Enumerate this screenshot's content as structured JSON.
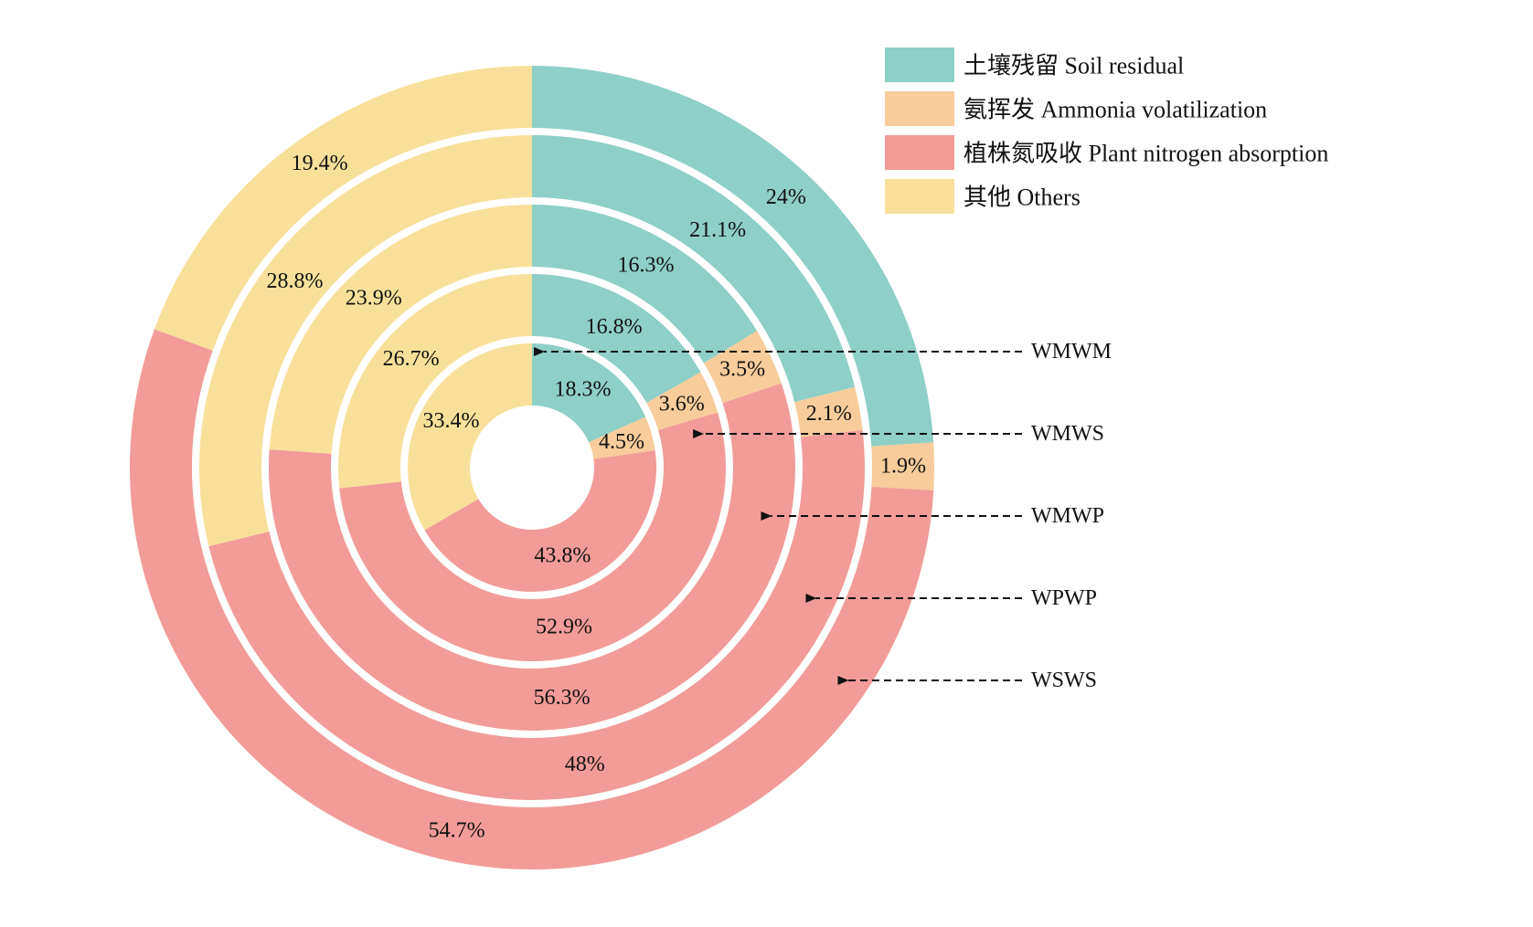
{
  "chart_data": {
    "type": "donut",
    "legend": {
      "placement": "top-right",
      "entries": [
        {
          "key": "soil",
          "label": "土壤残留 Soil residual",
          "color": "#8ECFC7"
        },
        {
          "key": "ammonia",
          "label": "氨挥发 Ammonia volatilization",
          "color": "#F8CC9B"
        },
        {
          "key": "plant",
          "label": "植株氮吸收 Plant nitrogen absorption",
          "color": "#F19C98"
        },
        {
          "key": "others",
          "label": "其他 Others",
          "color": "#F8E09A"
        }
      ]
    },
    "rings": [
      {
        "name": "WMWM",
        "values": [
          {
            "category": "soil",
            "value": 18.3,
            "label": "18.3%"
          },
          {
            "category": "ammonia",
            "value": 4.5,
            "label": "4.5%"
          },
          {
            "category": "plant",
            "value": 43.8,
            "label": "43.8%"
          },
          {
            "category": "others",
            "value": 33.4,
            "label": "33.4%"
          }
        ]
      },
      {
        "name": "WMWS",
        "values": [
          {
            "category": "soil",
            "value": 16.8,
            "label": "16.8%"
          },
          {
            "category": "ammonia",
            "value": 3.6,
            "label": "3.6%"
          },
          {
            "category": "plant",
            "value": 52.9,
            "label": "52.9%"
          },
          {
            "category": "others",
            "value": 26.7,
            "label": "26.7%"
          }
        ]
      },
      {
        "name": "WMWP",
        "values": [
          {
            "category": "soil",
            "value": 16.3,
            "label": "16.3%"
          },
          {
            "category": "ammonia",
            "value": 3.5,
            "label": "3.5%"
          },
          {
            "category": "plant",
            "value": 56.3,
            "label": "56.3%"
          },
          {
            "category": "others",
            "value": 23.9,
            "label": "23.9%"
          }
        ]
      },
      {
        "name": "WPWP",
        "values": [
          {
            "category": "soil",
            "value": 21.1,
            "label": "21.1%"
          },
          {
            "category": "ammonia",
            "value": 2.1,
            "label": "2.1%"
          },
          {
            "category": "plant",
            "value": 48,
            "label": "48%"
          },
          {
            "category": "others",
            "value": 28.8,
            "label": "28.8%"
          }
        ]
      },
      {
        "name": "WSWS",
        "values": [
          {
            "category": "soil",
            "value": 24,
            "label": "24%"
          },
          {
            "category": "ammonia",
            "value": 1.9,
            "label": "1.9%"
          },
          {
            "category": "plant",
            "value": 54.7,
            "label": "54.7%"
          },
          {
            "category": "others",
            "value": 19.4,
            "label": "19.4%"
          }
        ]
      }
    ]
  }
}
